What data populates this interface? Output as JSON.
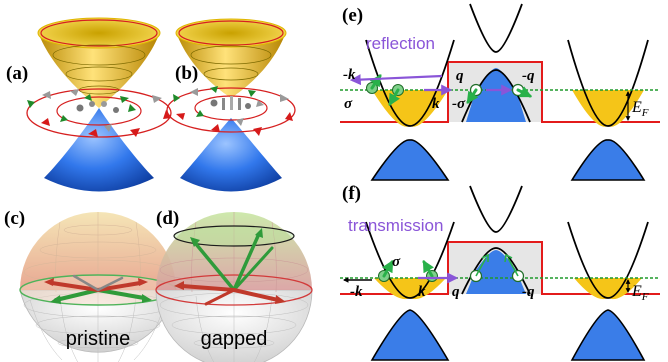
{
  "panels": {
    "a": "(a)",
    "b": "(b)",
    "c": "(c)",
    "d": "(d)",
    "e": "(e)",
    "f": "(f)"
  },
  "captions": {
    "pristine": "pristine",
    "gapped": "gapped",
    "reflection": "reflection",
    "transmission": "transmission"
  },
  "symbols_e": {
    "minus_k": "-k",
    "sigma": "σ",
    "k": "k",
    "q": "q",
    "minus_q": "-q",
    "minus_sigma": "-σ"
  },
  "symbols_f": {
    "sigma": "σ",
    "minus_k": "-k",
    "k": "k",
    "q": "q",
    "minus_q": "-q"
  },
  "energy_label": {
    "e": "E",
    "f": "E",
    "subscript": "F"
  },
  "colors": {
    "cone_upper": "#f2c21a",
    "cone_lower": "#2a6fe0",
    "barrier": "#e31b1b",
    "fermi_line": "#1f9a2b",
    "annotation": "#8a55d8",
    "arrow_green": "#29b14a",
    "sphere_top": "#e8b48a",
    "sphere_bottom": "#d8d8d8"
  }
}
